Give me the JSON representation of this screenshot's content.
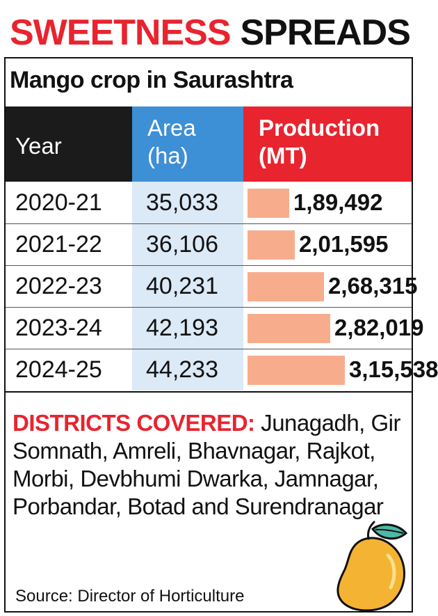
{
  "headline": {
    "word1": "SWEETNESS",
    "word2": "SPREADS"
  },
  "subtitle": "Mango crop in Saurashtra",
  "table": {
    "col_year": "Year",
    "col_area_line1": "Area",
    "col_area_line2": "(ha)",
    "col_prod_line1": "Production",
    "col_prod_line2": "(MT)",
    "rows": [
      {
        "year": "2020-21",
        "area": "35,033",
        "production": "1,89,492"
      },
      {
        "year": "2021-22",
        "area": "36,106",
        "production": "2,01,595"
      },
      {
        "year": "2022-23",
        "area": "40,231",
        "production": "2,68,315"
      },
      {
        "year": "2023-24",
        "area": "42,193",
        "production": "2,82,019"
      },
      {
        "year": "2024-25",
        "area": "44,233",
        "production": "3,15,538"
      }
    ]
  },
  "districts": {
    "label": "DISTRICTS COVERED:",
    "text": " Junagadh, Gir Somnath, Amreli, Bhavnagar, Rajkot, Morbi, Devbhumi Dwarka, Jamnagar, Porbandar, Botad and Surendranagar"
  },
  "source": "Source: Director of Horticulture",
  "chart_data": {
    "type": "table",
    "title": "Mango crop in Saurashtra",
    "columns": [
      "Year",
      "Area (ha)",
      "Production (MT)"
    ],
    "categories": [
      "2020-21",
      "2021-22",
      "2022-23",
      "2023-24",
      "2024-25"
    ],
    "series": [
      {
        "name": "Area (ha)",
        "values": [
          35033,
          36106,
          40231,
          42193,
          44233
        ]
      },
      {
        "name": "Production (MT)",
        "values": [
          189492,
          201595,
          268315,
          282019,
          315538
        ]
      }
    ]
  },
  "colors": {
    "accent_red": "#e8242f",
    "area_header_blue": "#3d8fd6",
    "area_cell_blue": "#dce9f6",
    "production_bar": "#f7ad8c"
  },
  "icons": {
    "mango": "mango-icon"
  }
}
